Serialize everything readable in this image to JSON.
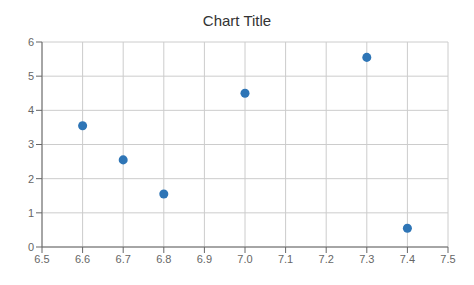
{
  "chart_data": {
    "type": "scatter",
    "title": "Chart Title",
    "x": [
      6.6,
      6.7,
      6.8,
      7.0,
      7.3,
      7.4
    ],
    "values": [
      3.55,
      2.55,
      1.55,
      4.5,
      5.55,
      0.55
    ],
    "color": "#2E75B6",
    "xlim": [
      6.5,
      7.5
    ],
    "ylim": [
      0,
      6
    ],
    "xticks": [
      6.5,
      6.6,
      6.7,
      6.8,
      6.9,
      {
        "value": 7,
        "label": "7.0"
      },
      7.1,
      7.2,
      7.3,
      7.4,
      7.5
    ],
    "yticks": [
      0,
      1,
      2,
      3,
      4,
      5,
      6
    ],
    "grid": true
  }
}
